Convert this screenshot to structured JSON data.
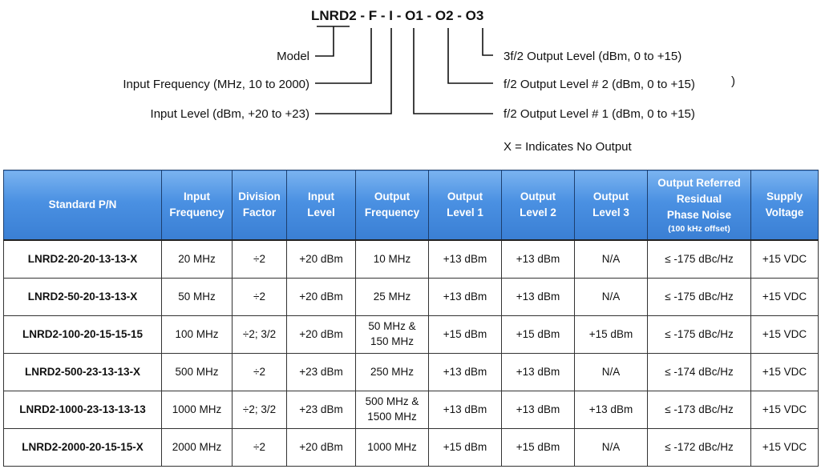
{
  "diagram": {
    "code": "LNRD2 - F - I - O1 - O2 - O3",
    "labels_left": {
      "model": "Model",
      "input_frequency": "Input Frequency (MHz, 10 to 2000)",
      "input_level": "Input Level (dBm, +20 to +23)"
    },
    "labels_right": {
      "o3": "3f/2 Output Level  (dBm, 0 to +15)",
      "o2": "f/2 Output Level # 2 (dBm, 0 to +15)",
      "o2_paren": ")",
      "o1": "f/2 Output Level # 1 (dBm, 0 to +15)"
    },
    "note": "X = Indicates No Output"
  },
  "table": {
    "headers": [
      {
        "lines": [
          "Standard P/N"
        ]
      },
      {
        "lines": [
          "Input",
          "Frequency"
        ]
      },
      {
        "lines": [
          "Division",
          "Factor"
        ]
      },
      {
        "lines": [
          "Input",
          "Level"
        ]
      },
      {
        "lines": [
          "Output",
          "Frequency"
        ]
      },
      {
        "lines": [
          "Output",
          "Level 1"
        ]
      },
      {
        "lines": [
          "Output",
          "Level 2"
        ]
      },
      {
        "lines": [
          "Output",
          "Level 3"
        ]
      },
      {
        "lines": [
          "Output Referred",
          "Residual",
          "Phase Noise"
        ],
        "sub": "(100 kHz offset)"
      },
      {
        "lines": [
          "Supply",
          "Voltage"
        ]
      }
    ],
    "rows": [
      [
        "LNRD2-20-20-13-13-X",
        "20 MHz",
        "÷2",
        "+20 dBm",
        [
          "10 MHz"
        ],
        "+13 dBm",
        "+13 dBm",
        "N/A",
        "≤ -175 dBc/Hz",
        "+15 VDC"
      ],
      [
        "LNRD2-50-20-13-13-X",
        "50 MHz",
        "÷2",
        "+20 dBm",
        [
          "25 MHz"
        ],
        "+13 dBm",
        "+13 dBm",
        "N/A",
        "≤ -175 dBc/Hz",
        "+15 VDC"
      ],
      [
        "LNRD2-100-20-15-15-15",
        "100 MHz",
        "÷2; 3/2",
        "+20 dBm",
        [
          "50 MHz &",
          "150 MHz"
        ],
        "+15 dBm",
        "+15 dBm",
        "+15 dBm",
        "≤ -175 dBc/Hz",
        "+15 VDC"
      ],
      [
        "LNRD2-500-23-13-13-X",
        "500 MHz",
        "÷2",
        "+23 dBm",
        [
          "250 MHz"
        ],
        "+13 dBm",
        "+13 dBm",
        "N/A",
        "≤ -174 dBc/Hz",
        "+15 VDC"
      ],
      [
        "LNRD2-1000-23-13-13-13",
        "1000 MHz",
        "÷2; 3/2",
        "+23 dBm",
        [
          "500 MHz &",
          "1500 MHz"
        ],
        "+13 dBm",
        "+13 dBm",
        "+13 dBm",
        "≤ -173 dBc/Hz",
        "+15 VDC"
      ],
      [
        "LNRD2-2000-20-15-15-X",
        "2000 MHz",
        "÷2",
        "+20 dBm",
        [
          "1000 MHz"
        ],
        "+15 dBm",
        "+15 dBm",
        "N/A",
        "≤ -172 dBc/Hz",
        "+15 VDC"
      ]
    ]
  }
}
